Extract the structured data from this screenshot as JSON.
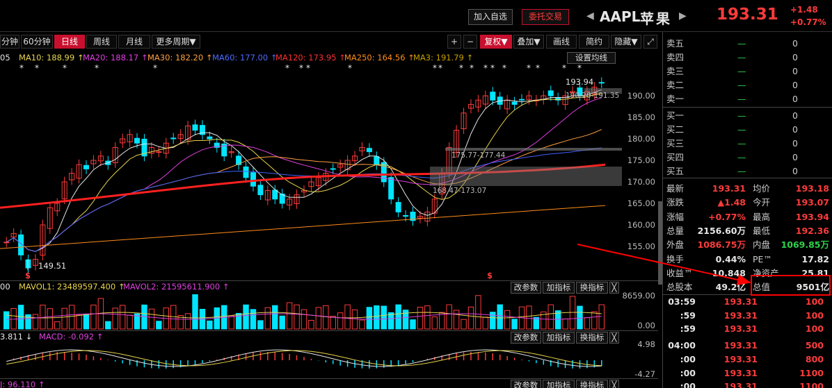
{
  "header": {
    "add_watch": "加入自选",
    "trade": "委托交易",
    "prev_arrow": "◀",
    "next_arrow": "▶",
    "symbol": "AAPL",
    "name": "苹果",
    "price": "193.31",
    "change": "+1.48",
    "change_pct": "+0.77%"
  },
  "toolbar": {
    "periods": [
      "分钟",
      "60分钟",
      "日线",
      "周线",
      "月线",
      "更多周期▼"
    ],
    "right": [
      "+",
      "−",
      "复权▼",
      "叠加▼",
      "画线",
      "简约",
      "隐藏▼",
      "⤢"
    ],
    "settings": "设置均线"
  },
  "ma_legend": [
    {
      "label": "05",
      "color": "#e6e6e6"
    },
    {
      "label": "MA10: 188.99 ↑",
      "color": "#e8d44d"
    },
    {
      "label": "MA20: 188.17 ↑",
      "color": "#e040e0"
    },
    {
      "label": "MA30: 182.20 ↑",
      "color": "#ffa040"
    },
    {
      "label": "MA60: 177.00 ↑",
      "color": "#4060ff"
    },
    {
      "label": "MA120: 173.95 ↑",
      "color": "#ff3030"
    },
    {
      "label": "MA250: 164.56 ↑",
      "color": "#ff8000"
    },
    {
      "label": "MA3: 191.79 ↑",
      "color": "#c8a000"
    }
  ],
  "price_axis": [
    "190.00",
    "185.00",
    "180.00",
    "175.00",
    "170.00",
    "165.00",
    "160.00",
    "155.00"
  ],
  "annotations": {
    "high": "193.94",
    "low": "149.51",
    "range_top": "190.20-191.35",
    "range_mid": "175.77-177.44",
    "range_low": "168.47-173.07",
    "marker": "$"
  },
  "volume": {
    "vol_label": "00",
    "mavol1": "MAVOL1: 23489597.400 ↑",
    "mavol2": "MAVOL2: 21595611.900 ↑",
    "axis_top": "8659.00",
    "axis_bottom": "0.00",
    "btn_params": "改参数",
    "btn_add": "加指标",
    "btn_switch": "换指标",
    "close": "╳"
  },
  "macd": {
    "val": "3.811 ↓",
    "macd": "MACD: -0.092 ↑",
    "axis_top": "4.98",
    "axis_bottom": "-4.27"
  },
  "kdj": {
    "val": "J: 96.110 ↑"
  },
  "orderbook": {
    "asks": [
      {
        "label": "卖五",
        "p": "—",
        "v": "0"
      },
      {
        "label": "卖四",
        "p": "—",
        "v": "0"
      },
      {
        "label": "卖三",
        "p": "—",
        "v": "0"
      },
      {
        "label": "卖二",
        "p": "—",
        "v": "0"
      },
      {
        "label": "卖一",
        "p": "—",
        "v": "0"
      }
    ],
    "bids": [
      {
        "label": "买一",
        "p": "—",
        "v": "0"
      },
      {
        "label": "买二",
        "p": "—",
        "v": "0"
      },
      {
        "label": "买三",
        "p": "—",
        "v": "0"
      },
      {
        "label": "买四",
        "p": "—",
        "v": "0"
      },
      {
        "label": "买五",
        "p": "—",
        "v": "0"
      }
    ]
  },
  "stats": [
    {
      "l1": "最新",
      "v1": "193.31",
      "c1": "red",
      "l2": "均价",
      "v2": "193.18",
      "c2": "red"
    },
    {
      "l1": "涨跌",
      "v1": "▲1.48",
      "c1": "red",
      "l2": "今开",
      "v2": "193.07",
      "c2": "red"
    },
    {
      "l1": "涨幅",
      "v1": "+0.77%",
      "c1": "red",
      "l2": "最高",
      "v2": "193.94",
      "c2": "red"
    },
    {
      "l1": "总量",
      "v1": "2156.60万",
      "c1": "white",
      "l2": "最低",
      "v2": "192.36",
      "c2": "red"
    },
    {
      "l1": "外盘",
      "v1": "1086.75万",
      "c1": "red",
      "l2": "内盘",
      "v2": "1069.85万",
      "c2": "green"
    },
    {
      "l1": "换手",
      "v1": "0.44%",
      "c1": "white",
      "l2": "PE™",
      "v2": "17.82",
      "c2": "white"
    },
    {
      "l1": "收益™",
      "v1": "10.848",
      "c1": "white",
      "l2": "净资产",
      "v2": "25.81",
      "c2": "white"
    },
    {
      "l1": "总股本",
      "v1": "49.2亿",
      "c1": "white",
      "l2": "总值",
      "v2": "9501亿",
      "c2": "white"
    }
  ],
  "ticks": [
    {
      "t": "03:59",
      "p": "193.31",
      "v": "100"
    },
    {
      "t": ":59",
      "p": "193.31",
      "v": "100"
    },
    {
      "t": ":59",
      "p": "193.31",
      "v": "100"
    },
    {
      "t": "04:00",
      "p": "193.31",
      "v": "500"
    },
    {
      "t": ":00",
      "p": "193.31",
      "v": "800"
    },
    {
      "t": ":00",
      "p": "193.31",
      "v": "1100"
    },
    {
      "t": ":00",
      "p": "193.31",
      "v": "1100"
    }
  ],
  "colors": {
    "up": "#ff3b3b",
    "down": "#00e5ff",
    "accent": "#c8102e",
    "highlight": "#ff0000"
  }
}
